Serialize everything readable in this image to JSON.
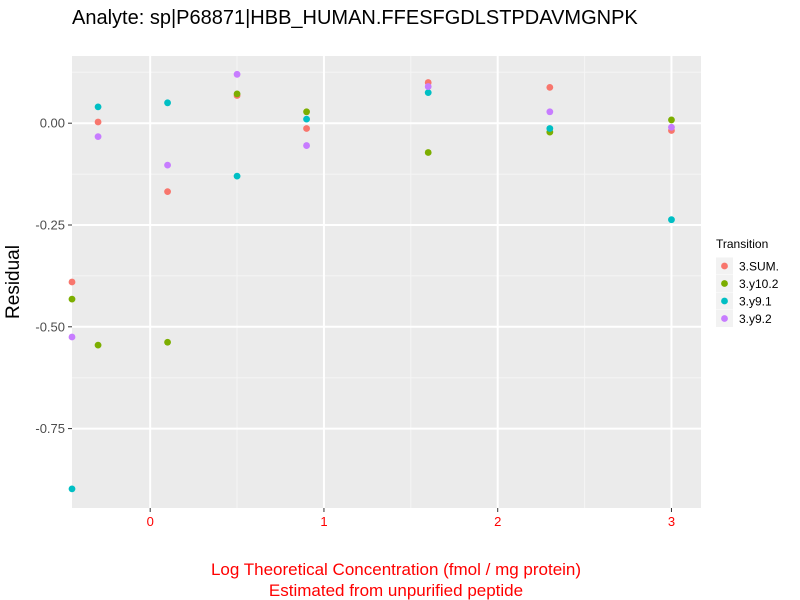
{
  "chart_data": {
    "type": "scatter",
    "title": "Analyte: sp|P68871|HBB_HUMAN.FFESFGDLSTPDAVMGNPK",
    "xlabel_line1": "Log Theoretical Concentration (fmol / mg protein)",
    "xlabel_line2": "Estimated from unpurified peptide",
    "xlabel_color": "#ff0000",
    "ylabel": "Residual",
    "xlim": [
      -0.45,
      3.17
    ],
    "ylim": [
      -0.945,
      0.165
    ],
    "x_ticks": [
      0,
      1,
      2,
      3
    ],
    "x_tick_labels": [
      "0",
      "1",
      "2",
      "3"
    ],
    "y_ticks": [
      0,
      -0.25,
      -0.5,
      -0.75
    ],
    "y_tick_labels": [
      "0.00",
      "-0.25",
      "-0.50",
      "-0.75"
    ],
    "grid": true,
    "legend": {
      "title": "Transition",
      "position": "right"
    },
    "series": [
      {
        "name": "3.SUM.",
        "color": "#f8766d",
        "points": [
          [
            -0.45,
            -0.39
          ],
          [
            -0.3,
            0.003
          ],
          [
            0.1,
            -0.168
          ],
          [
            0.5,
            0.068
          ],
          [
            0.9,
            -0.013
          ],
          [
            1.6,
            0.1
          ],
          [
            2.3,
            0.088
          ],
          [
            3.0,
            -0.018
          ]
        ]
      },
      {
        "name": "3.y10.2",
        "color": "#7cae00",
        "points": [
          [
            -0.45,
            -0.432
          ],
          [
            -0.3,
            -0.545
          ],
          [
            0.1,
            -0.538
          ],
          [
            0.5,
            0.072
          ],
          [
            0.9,
            0.028
          ],
          [
            1.6,
            -0.072
          ],
          [
            2.3,
            -0.022
          ],
          [
            3.0,
            0.008
          ]
        ]
      },
      {
        "name": "3.y9.1",
        "color": "#00bfc4",
        "points": [
          [
            -0.45,
            -0.898
          ],
          [
            -0.3,
            0.04
          ],
          [
            0.1,
            0.05
          ],
          [
            0.5,
            -0.13
          ],
          [
            0.9,
            0.01
          ],
          [
            1.6,
            0.075
          ],
          [
            2.3,
            -0.013
          ],
          [
            3.0,
            -0.237
          ]
        ]
      },
      {
        "name": "3.y9.2",
        "color": "#c77cff",
        "points": [
          [
            -0.45,
            -0.525
          ],
          [
            -0.3,
            -0.033
          ],
          [
            0.1,
            -0.103
          ],
          [
            0.5,
            0.12
          ],
          [
            0.9,
            -0.055
          ],
          [
            1.6,
            0.09
          ],
          [
            2.3,
            0.028
          ],
          [
            3.0,
            -0.01
          ]
        ]
      }
    ]
  }
}
